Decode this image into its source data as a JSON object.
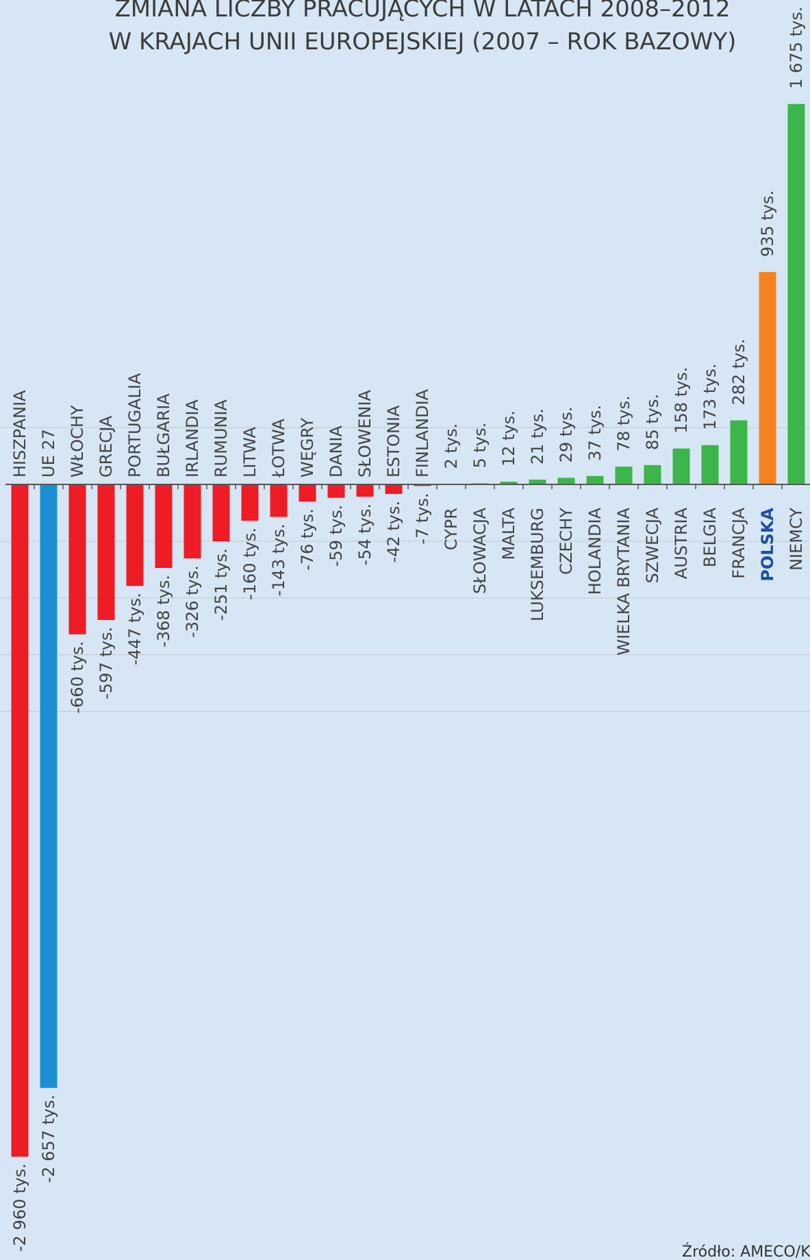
{
  "chart_data": {
    "type": "bar",
    "title": [
      "ZMIANA LICZBY PRACUJĄCYCH W LATACH 2008–2012",
      "W KRAJACH UNII EUROPEJSKIEJ (2007 – ROK BAZOWY)"
    ],
    "unit": "tys.",
    "source": "Źródło: AMECO/K",
    "highlight_category": "POLSKA",
    "categories": [
      "HISZPANIA",
      "UE 27",
      "WŁOCHY",
      "GRECJA",
      "PORTUGALIA",
      "BUŁGARIA",
      "IRLANDIA",
      "RUMUNIA",
      "LITWA",
      "ŁOTWA",
      "WĘGRY",
      "DANIA",
      "SŁOWENIA",
      "ESTONIA",
      "FINLANDIA",
      "CYPR",
      "SŁOWACJA",
      "MALTA",
      "LUKSEMBURG",
      "CZECHY",
      "HOLANDIA",
      "WIELKA BRYTANIA",
      "SZWECJA",
      "AUSTRIA",
      "BELGIA",
      "FRANCJA",
      "POLSKA",
      "NIEMCY"
    ],
    "values": [
      -2960,
      -2657,
      -660,
      -597,
      -447,
      -368,
      -326,
      -251,
      -160,
      -143,
      -76,
      -59,
      -54,
      -42,
      -7,
      2,
      5,
      12,
      21,
      29,
      37,
      78,
      85,
      158,
      173,
      282,
      935,
      1675
    ],
    "value_labels": [
      "-2 960 tys.",
      "-2 657 tys.",
      "-660 tys.",
      "-597 tys.",
      "-447 tys.",
      "-368 tys.",
      "-326 tys.",
      "-251 tys.",
      "-160 tys.",
      "-143 tys.",
      "-76 tys.",
      "-59 tys.",
      "-54 tys.",
      "-42 tys.",
      "-7 tys.",
      "2 tys.",
      "5 tys.",
      "12 tys.",
      "21 tys.",
      "29 tys.",
      "37 tys.",
      "78 tys.",
      "85 tys.",
      "158 tys.",
      "173 tys.",
      "282 tys.",
      "935 tys.",
      "1 675 tys."
    ],
    "colors": {
      "negative": "#ee1c25",
      "eu": "#1b8fd2",
      "positive": "#3cb54a",
      "poland": "#f5821f",
      "background": "#d6e6f4",
      "gridline": "#c3c9cf",
      "highlight_text": "#1f4fa3"
    },
    "grid": true
  }
}
